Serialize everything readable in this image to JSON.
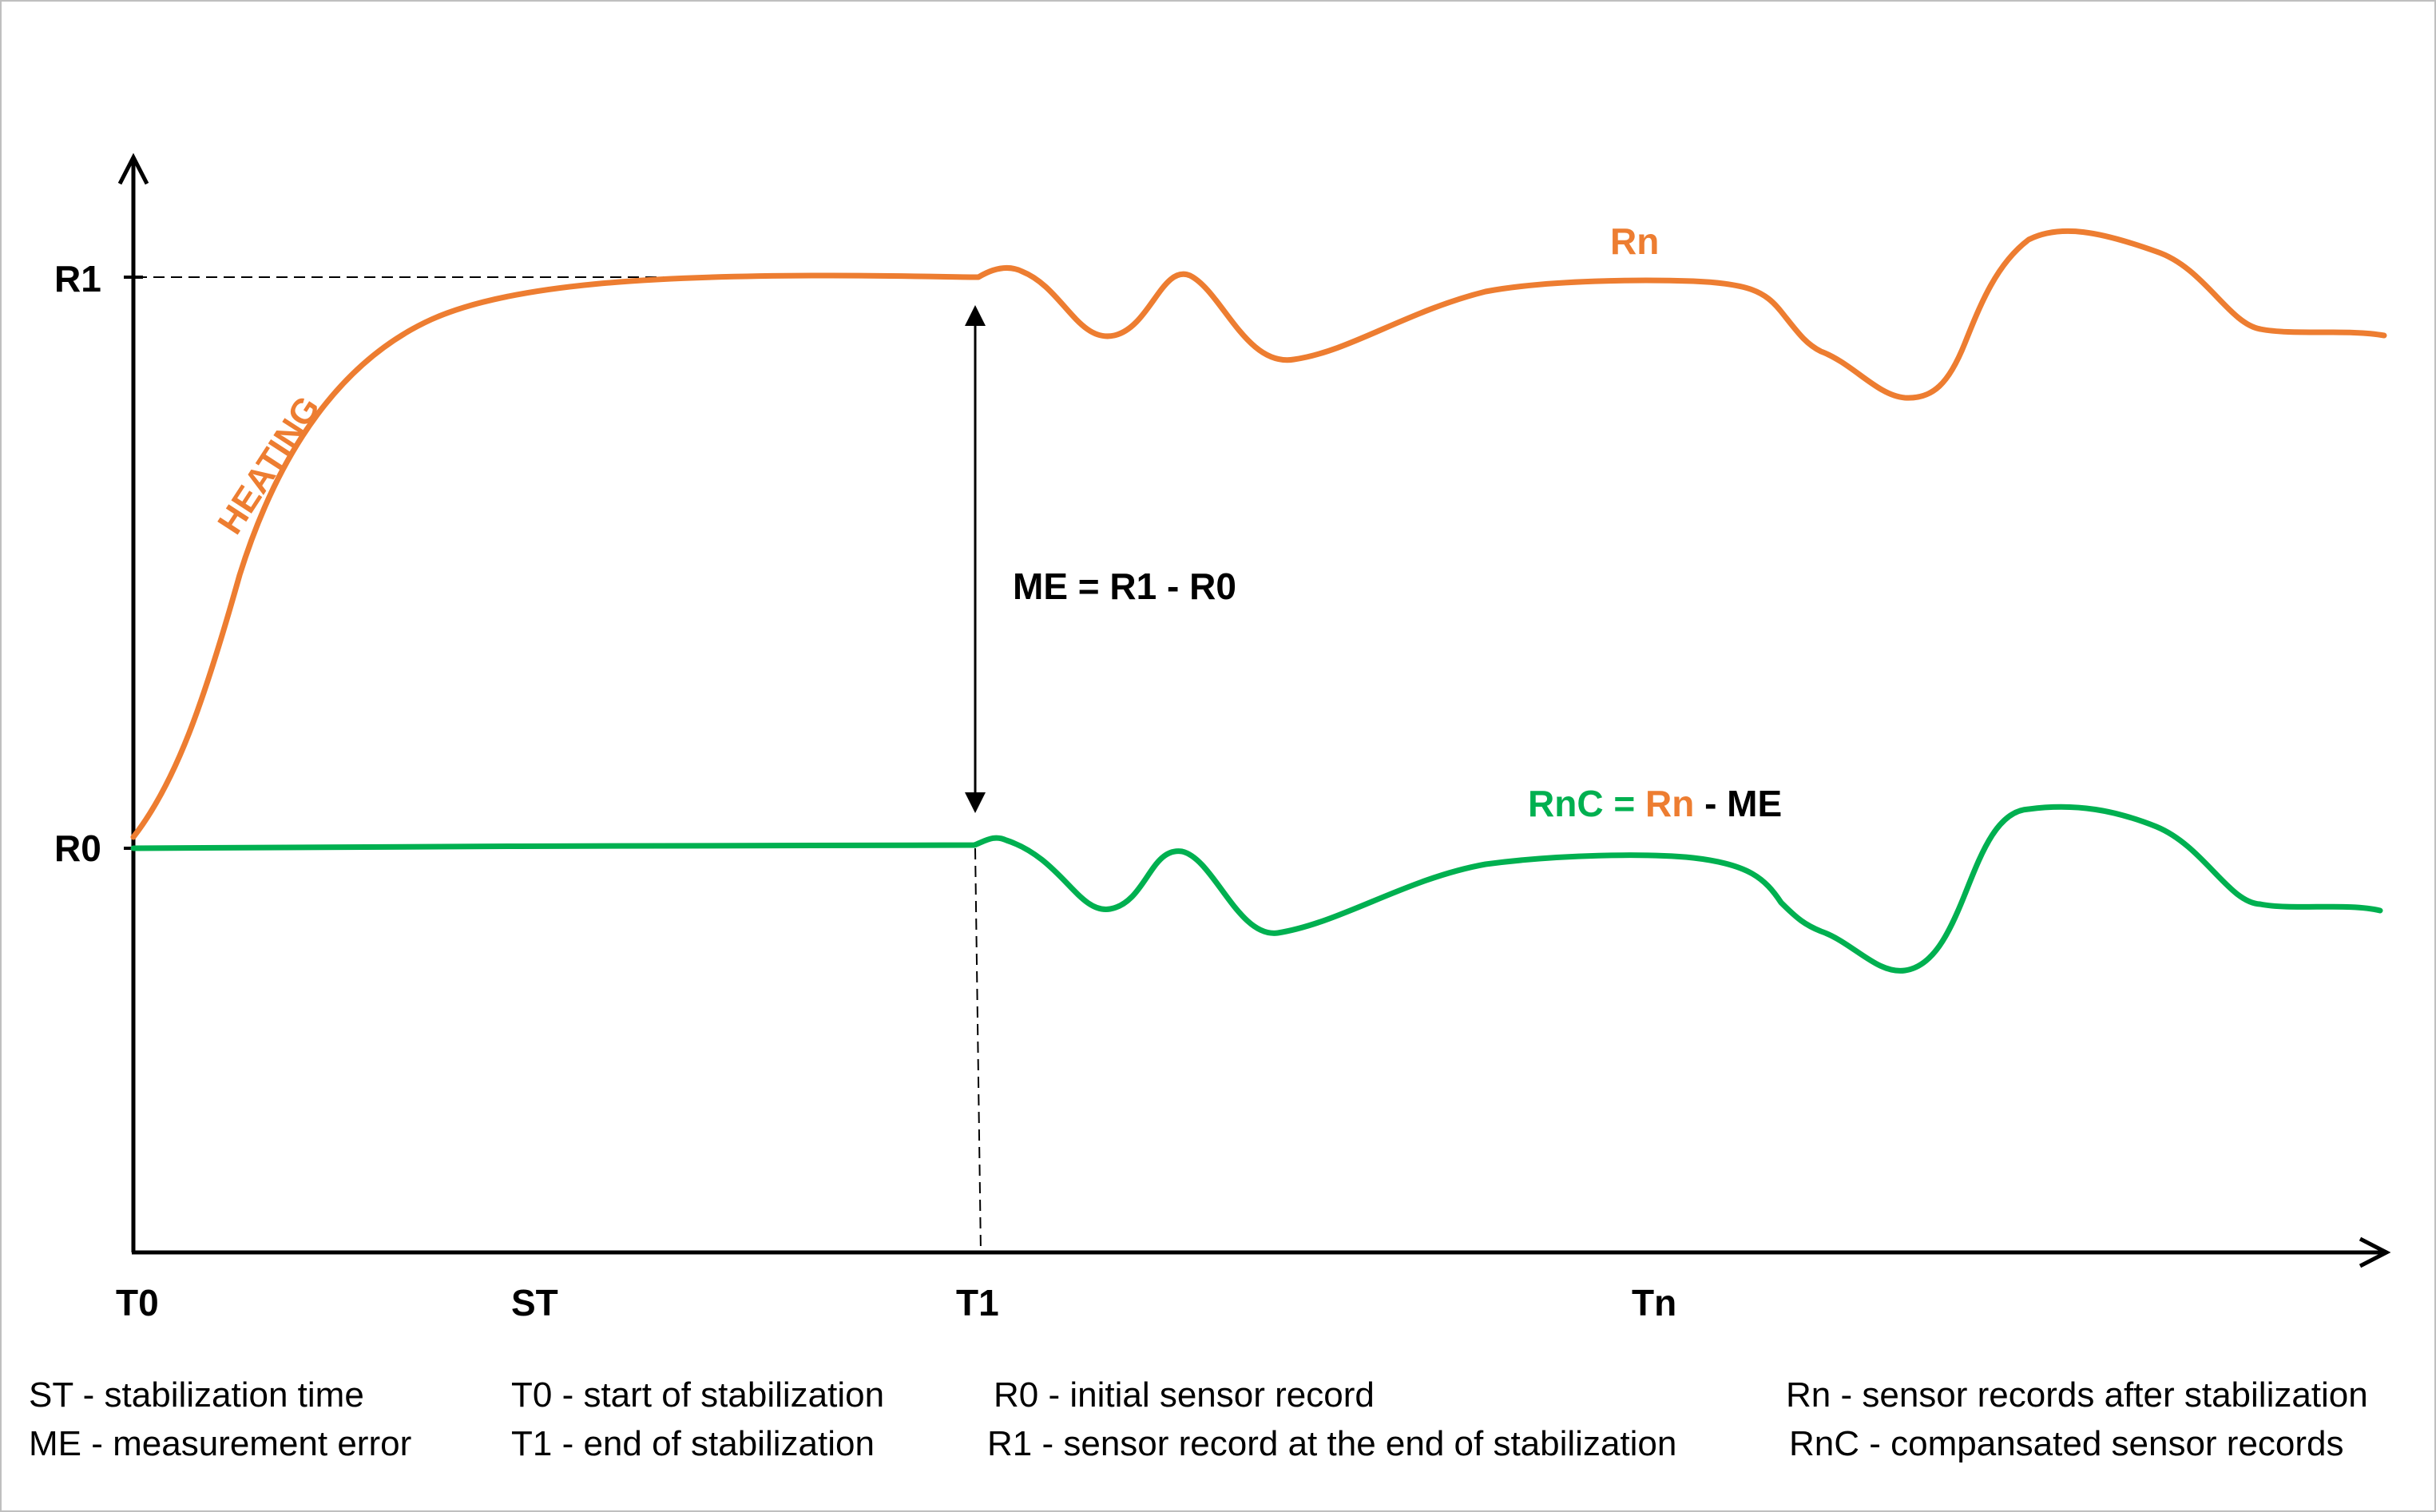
{
  "colors": {
    "rn": "#ED7D31",
    "rnc": "#00B050",
    "axis": "#000000",
    "frame": "#bfbfbf"
  },
  "axes": {
    "y_labels": [
      "R1",
      "R0"
    ],
    "x_labels": [
      "T0",
      "ST",
      "T1",
      "Tn"
    ]
  },
  "annotations": {
    "heating": "HEATING",
    "rn": "Rn",
    "me_formula": "ME = R1 - R0",
    "rnc_formula": {
      "lhs": "RnC = ",
      "rn": "Rn",
      "rest": " - ME"
    }
  },
  "legend": [
    [
      "ST - stabilization time",
      "ME - measurement error"
    ],
    [
      "T0 - start of stabilization",
      "T1 - end of stabilization"
    ],
    [
      "R0 - initial sensor record",
      "R1 - sensor record at the end of stabilization"
    ],
    [
      "Rn  - sensor records after stabilization",
      "RnC - compansated sensor records"
    ]
  ]
}
